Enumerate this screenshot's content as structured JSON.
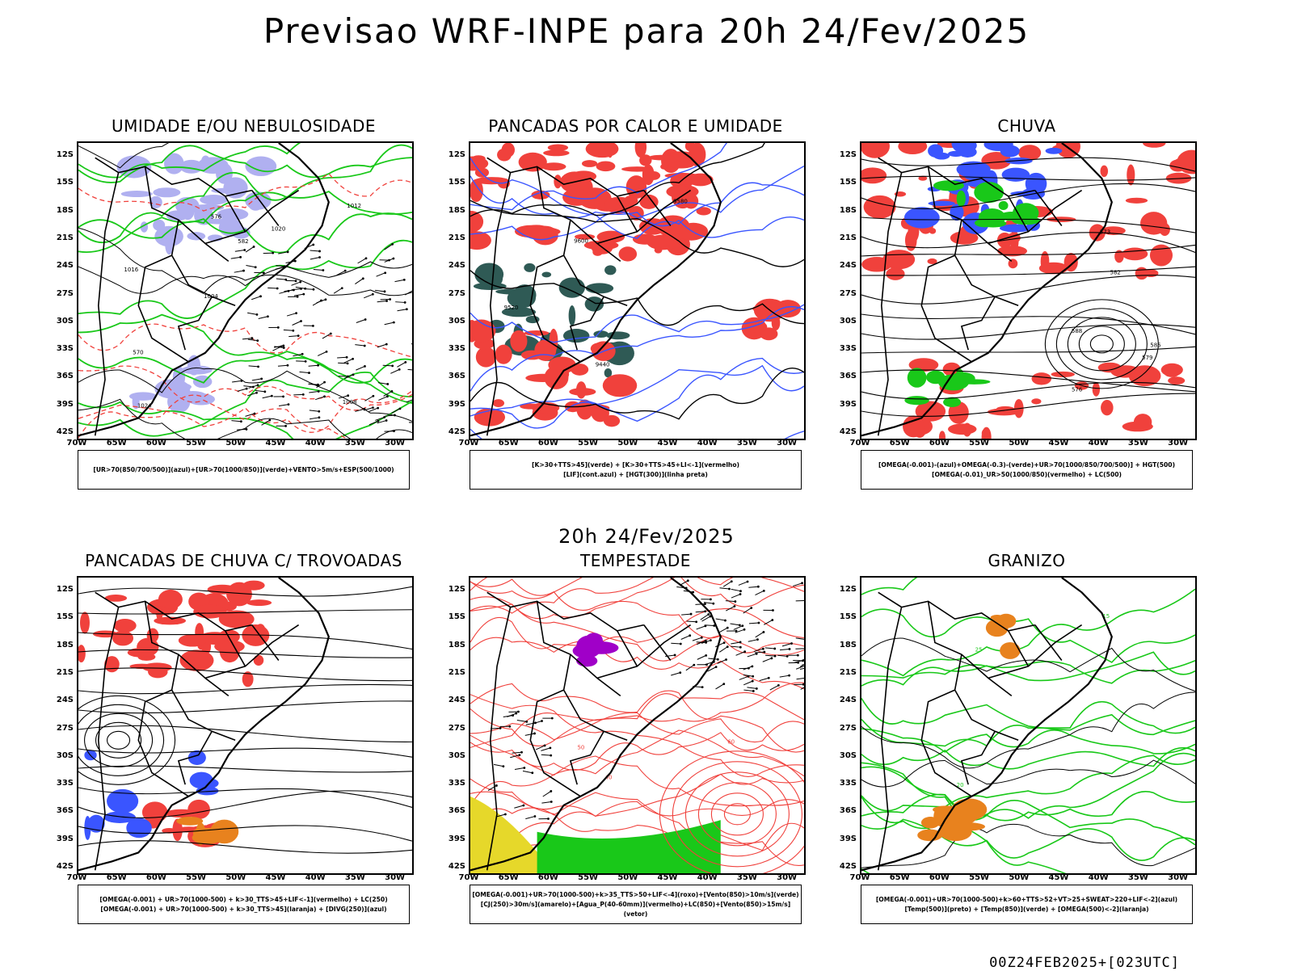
{
  "title": "Previsao WRF-INPE  para 20h 24/Fev/2025",
  "mid_title": "20h 24/Fev/2025",
  "footer": "00Z24FEB2025+[023UTC]",
  "lat_labels": [
    "12S",
    "15S",
    "18S",
    "21S",
    "24S",
    "27S",
    "30S",
    "33S",
    "36S",
    "39S",
    "42S"
  ],
  "lon_labels": [
    "70W",
    "65W",
    "60W",
    "55W",
    "50W",
    "45W",
    "40W",
    "35W",
    "30W"
  ],
  "colors": {
    "blue": "#3a55ff",
    "lavender": "#b0b0f0",
    "green": "#19c819",
    "red": "#f0413c",
    "darkteal": "#2f5a55",
    "yellow": "#e6d82a",
    "orange": "#e8821e",
    "purple": "#a000c8"
  },
  "panels": [
    {
      "title": "UMIDADE E/OU NEBULOSIDADE",
      "legend": [
        "[UR>70(850/700/500)](azul)+[UR>70(1000/850)](verde)+VENTO>5m/s+ESP(500/1000)"
      ],
      "labels": [
        "1008",
        "1016",
        "1012",
        "1004",
        "1020",
        "1024",
        "576",
        "582",
        "570"
      ]
    },
    {
      "title": "PANCADAS POR CALOR E UMIDADE",
      "legend": [
        "[K>30+TTS>45](verde) + [K>30+TTS>45+LI<-1](vermelho)",
        "[LIF](cont.azul) + [HGT(300)](linha preta)"
      ],
      "labels": [
        "9600",
        "9520",
        "9440",
        "9580"
      ]
    },
    {
      "title": "CHUVA",
      "legend": [
        "[OMEGA(-0.001)-(azul)+OMEGA(-0.3)-(verde)+UR>70(1000/850/700/500)] + HGT(500)",
        "[OMEGA(-0.01)_UR>50(1000/850)(vermelho) + LC(500)"
      ],
      "labels": [
        "588",
        "585",
        "582",
        "579",
        "576",
        "573"
      ]
    },
    {
      "title": "PANCADAS DE CHUVA C/ TROVOADAS",
      "legend": [
        "[OMEGA(-0.001) + UR>70(1000-500) + k>30_TTS>45+LIF<-1](vermelho) + LC(250)",
        "[OMEGA(-0.001) + UR>70(1000-500) + k>30_TTS>45](laranja) + [DIVG(250)](azul)"
      ],
      "labels": []
    },
    {
      "title": "TEMPESTADE",
      "legend": [
        "[OMEGA(-0.001)+UR>70(1000-500)+k>35_TTS>50+LIF<-4](roxo)+[Vento(850)>10m/s](verde)",
        "[CJ(250)>30m/s](amarelo)+[Agua_P(40-60mm)](vermelho)+LC(850)+[Vento(850)>15m/s](vetor)"
      ],
      "labels": [
        "40",
        "50",
        "60"
      ]
    },
    {
      "title": "GRANIZO",
      "legend": [
        "[OMEGA(-0.001)+UR>70(1000-500)+k>60+TTS>52+VT>25+SWEAT>220+LIF<-2](azul)",
        "[Temp(500)](preto) + [Temp(850)](verde) + [OMEGA(500)<-2](laranja)"
      ],
      "labels": [
        "15",
        "20",
        "25"
      ]
    }
  ]
}
